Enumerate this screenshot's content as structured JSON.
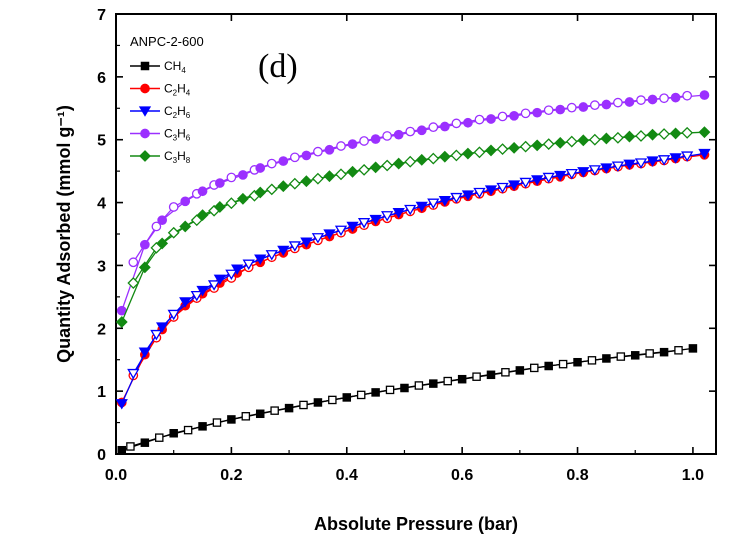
{
  "chart_data": {
    "type": "scatter",
    "title": "",
    "panel_label": "(d)",
    "xlabel": "Absolute Pressure (bar)",
    "ylabel": "Quantity Adsorbed (mmol g⁻¹)",
    "xlim": [
      0,
      1.04
    ],
    "ylim": [
      0,
      7
    ],
    "xticks": [
      0.0,
      0.2,
      0.4,
      0.6,
      0.8,
      1.0
    ],
    "xtick_labels": [
      "0.0",
      "0.2",
      "0.4",
      "0.6",
      "0.8",
      "1.0"
    ],
    "yticks": [
      0,
      1,
      2,
      3,
      4,
      5,
      6,
      7
    ],
    "ytick_labels": [
      "0",
      "1",
      "2",
      "3",
      "4",
      "5",
      "6",
      "7"
    ],
    "grid": false,
    "legend": {
      "title": "ANPC-2-600",
      "placement": "top-left"
    },
    "series": [
      {
        "name": "CH4",
        "label_main": "CH",
        "label_sub": "4",
        "color": "#000000",
        "marker": "square",
        "adsorption": {
          "x": [
            0.01,
            0.05,
            0.1,
            0.15,
            0.2,
            0.25,
            0.3,
            0.35,
            0.4,
            0.45,
            0.5,
            0.55,
            0.6,
            0.65,
            0.7,
            0.75,
            0.8,
            0.85,
            0.9,
            0.95,
            1.0
          ],
          "y": [
            0.06,
            0.18,
            0.33,
            0.44,
            0.55,
            0.64,
            0.73,
            0.82,
            0.9,
            0.98,
            1.05,
            1.12,
            1.19,
            1.26,
            1.33,
            1.4,
            1.46,
            1.52,
            1.57,
            1.62,
            1.68
          ]
        },
        "desorption": {
          "x": [
            0.025,
            0.075,
            0.125,
            0.175,
            0.225,
            0.275,
            0.325,
            0.375,
            0.425,
            0.475,
            0.525,
            0.575,
            0.625,
            0.675,
            0.725,
            0.775,
            0.825,
            0.875,
            0.925,
            0.975
          ],
          "y": [
            0.12,
            0.26,
            0.38,
            0.5,
            0.6,
            0.69,
            0.78,
            0.86,
            0.94,
            1.02,
            1.09,
            1.16,
            1.23,
            1.3,
            1.37,
            1.43,
            1.49,
            1.55,
            1.6,
            1.65
          ]
        }
      },
      {
        "name": "C2H4",
        "label_main": "C",
        "label_sub": "2",
        "label_main2": "H",
        "label_sub2": "4",
        "color": "#ff0000",
        "marker": "circle",
        "adsorption": {
          "x": [
            0.01,
            0.05,
            0.08,
            0.12,
            0.15,
            0.18,
            0.21,
            0.25,
            0.29,
            0.33,
            0.37,
            0.41,
            0.45,
            0.49,
            0.53,
            0.57,
            0.61,
            0.65,
            0.69,
            0.73,
            0.77,
            0.81,
            0.85,
            0.89,
            0.93,
            0.97,
            1.02
          ],
          "y": [
            0.82,
            1.58,
            1.98,
            2.36,
            2.55,
            2.72,
            2.88,
            3.05,
            3.2,
            3.33,
            3.46,
            3.58,
            3.7,
            3.81,
            3.91,
            4.01,
            4.1,
            4.18,
            4.26,
            4.34,
            4.41,
            4.48,
            4.54,
            4.6,
            4.65,
            4.7,
            4.76
          ]
        },
        "desorption": {
          "x": [
            0.03,
            0.07,
            0.1,
            0.14,
            0.17,
            0.2,
            0.23,
            0.27,
            0.31,
            0.35,
            0.39,
            0.43,
            0.47,
            0.51,
            0.55,
            0.59,
            0.63,
            0.67,
            0.71,
            0.75,
            0.79,
            0.83,
            0.87,
            0.91,
            0.95,
            0.99
          ],
          "y": [
            1.25,
            1.85,
            2.18,
            2.48,
            2.64,
            2.8,
            2.97,
            3.13,
            3.27,
            3.4,
            3.52,
            3.64,
            3.75,
            3.86,
            3.96,
            4.06,
            4.14,
            4.22,
            4.3,
            4.38,
            4.45,
            4.51,
            4.57,
            4.62,
            4.67,
            4.73
          ]
        }
      },
      {
        "name": "C2H6",
        "label_main": "C",
        "label_sub": "2",
        "label_main2": "H",
        "label_sub2": "6",
        "color": "#0000ff",
        "marker": "triangle-down",
        "adsorption": {
          "x": [
            0.01,
            0.05,
            0.08,
            0.12,
            0.15,
            0.18,
            0.21,
            0.25,
            0.29,
            0.33,
            0.37,
            0.41,
            0.45,
            0.49,
            0.53,
            0.57,
            0.61,
            0.65,
            0.69,
            0.73,
            0.77,
            0.81,
            0.85,
            0.89,
            0.93,
            0.97,
            1.02
          ],
          "y": [
            0.8,
            1.62,
            2.02,
            2.42,
            2.6,
            2.78,
            2.94,
            3.1,
            3.24,
            3.37,
            3.5,
            3.62,
            3.73,
            3.84,
            3.94,
            4.03,
            4.12,
            4.2,
            4.28,
            4.36,
            4.43,
            4.49,
            4.55,
            4.61,
            4.66,
            4.71,
            4.78
          ]
        },
        "desorption": {
          "x": [
            0.03,
            0.07,
            0.1,
            0.14,
            0.17,
            0.2,
            0.23,
            0.27,
            0.31,
            0.35,
            0.39,
            0.43,
            0.47,
            0.51,
            0.55,
            0.59,
            0.63,
            0.67,
            0.71,
            0.75,
            0.79,
            0.83,
            0.87,
            0.91,
            0.95,
            0.99
          ],
          "y": [
            1.28,
            1.9,
            2.22,
            2.52,
            2.69,
            2.86,
            3.02,
            3.17,
            3.31,
            3.44,
            3.56,
            3.68,
            3.79,
            3.89,
            3.99,
            4.08,
            4.16,
            4.24,
            4.32,
            4.4,
            4.46,
            4.52,
            4.58,
            4.63,
            4.68,
            4.74
          ]
        }
      },
      {
        "name": "C3H6",
        "label_main": "C",
        "label_sub": "3",
        "label_main2": "H",
        "label_sub2": "6",
        "color": "#9b30ff",
        "marker": "circle",
        "adsorption": {
          "x": [
            0.01,
            0.05,
            0.08,
            0.12,
            0.15,
            0.18,
            0.22,
            0.25,
            0.29,
            0.33,
            0.37,
            0.41,
            0.45,
            0.49,
            0.53,
            0.57,
            0.61,
            0.65,
            0.69,
            0.73,
            0.77,
            0.81,
            0.85,
            0.89,
            0.93,
            0.97,
            1.02
          ],
          "y": [
            2.28,
            3.33,
            3.72,
            4.02,
            4.18,
            4.31,
            4.44,
            4.55,
            4.66,
            4.75,
            4.84,
            4.93,
            5.01,
            5.08,
            5.15,
            5.21,
            5.27,
            5.33,
            5.38,
            5.43,
            5.48,
            5.52,
            5.56,
            5.6,
            5.64,
            5.67,
            5.71
          ]
        },
        "desorption": {
          "x": [
            0.03,
            0.07,
            0.1,
            0.14,
            0.17,
            0.2,
            0.24,
            0.27,
            0.31,
            0.35,
            0.39,
            0.43,
            0.47,
            0.51,
            0.55,
            0.59,
            0.63,
            0.67,
            0.71,
            0.75,
            0.79,
            0.83,
            0.87,
            0.91,
            0.95,
            0.99
          ],
          "y": [
            3.05,
            3.62,
            3.93,
            4.14,
            4.28,
            4.4,
            4.52,
            4.62,
            4.72,
            4.81,
            4.9,
            4.98,
            5.06,
            5.13,
            5.2,
            5.26,
            5.32,
            5.37,
            5.42,
            5.47,
            5.51,
            5.55,
            5.59,
            5.63,
            5.66,
            5.7
          ]
        }
      },
      {
        "name": "C3H8",
        "label_main": "C",
        "label_sub": "3",
        "label_main2": "H",
        "label_sub2": "8",
        "color": "#138a13",
        "marker": "diamond",
        "adsorption": {
          "x": [
            0.01,
            0.05,
            0.08,
            0.12,
            0.15,
            0.18,
            0.22,
            0.25,
            0.29,
            0.33,
            0.37,
            0.41,
            0.45,
            0.49,
            0.53,
            0.57,
            0.61,
            0.65,
            0.69,
            0.73,
            0.77,
            0.81,
            0.85,
            0.89,
            0.93,
            0.97,
            1.02
          ],
          "y": [
            2.1,
            2.97,
            3.35,
            3.62,
            3.8,
            3.93,
            4.06,
            4.16,
            4.26,
            4.34,
            4.42,
            4.49,
            4.56,
            4.62,
            4.68,
            4.73,
            4.78,
            4.83,
            4.87,
            4.91,
            4.95,
            4.99,
            5.02,
            5.05,
            5.08,
            5.1,
            5.12
          ]
        },
        "desorption": {
          "x": [
            0.03,
            0.07,
            0.1,
            0.14,
            0.17,
            0.2,
            0.24,
            0.27,
            0.31,
            0.35,
            0.39,
            0.43,
            0.47,
            0.51,
            0.55,
            0.59,
            0.63,
            0.67,
            0.71,
            0.75,
            0.79,
            0.83,
            0.87,
            0.91,
            0.95,
            0.99
          ],
          "y": [
            2.72,
            3.28,
            3.52,
            3.72,
            3.87,
            3.99,
            4.11,
            4.21,
            4.3,
            4.38,
            4.45,
            4.52,
            4.59,
            4.65,
            4.7,
            4.75,
            4.8,
            4.85,
            4.89,
            4.93,
            4.97,
            5.0,
            5.03,
            5.06,
            5.09,
            5.11
          ]
        }
      }
    ]
  }
}
